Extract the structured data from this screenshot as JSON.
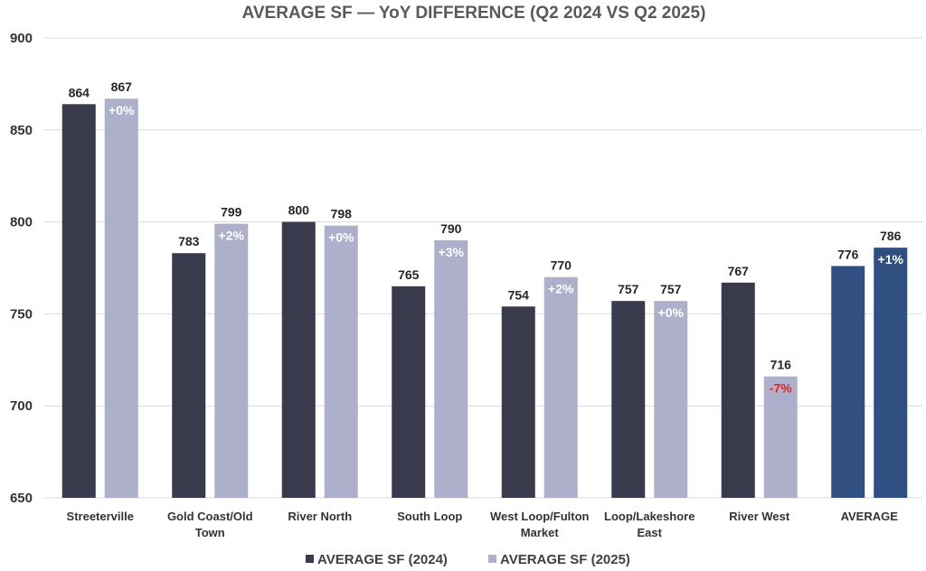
{
  "chart_data": {
    "type": "bar",
    "title": "AVERAGE SF  — YoY DIFFERENCE (Q2 2024 VS Q2 2025)",
    "categories": [
      [
        "Streeterville"
      ],
      [
        "Gold Coast/Old",
        "Town"
      ],
      [
        "River North"
      ],
      [
        "South Loop"
      ],
      [
        "West Loop/Fulton",
        "Market"
      ],
      [
        "Loop/Lakeshore",
        "East"
      ],
      [
        "River West"
      ],
      [
        "AVERAGE"
      ]
    ],
    "series": [
      {
        "name": "AVERAGE SF (2024)",
        "values": [
          864,
          783,
          800,
          765,
          754,
          757,
          767,
          776
        ]
      },
      {
        "name": "AVERAGE SF (2025)",
        "values": [
          867,
          799,
          798,
          790,
          770,
          757,
          716,
          786
        ]
      }
    ],
    "yoy_labels": [
      "+0%",
      "+2%",
      "+0%",
      "+3%",
      "+2%",
      "+0%",
      "-7%",
      "+1%"
    ],
    "ylim": [
      650,
      900
    ],
    "yticks": [
      650,
      700,
      750,
      800,
      850,
      900
    ],
    "grid": true,
    "legend_position": "bottom",
    "colors": {
      "series_2024": "#393a4c",
      "series_2025": "#aeb0cb",
      "average_bars": "#2f5080",
      "pct_light": "#ffffff",
      "pct_negative": "#e8231e"
    }
  }
}
